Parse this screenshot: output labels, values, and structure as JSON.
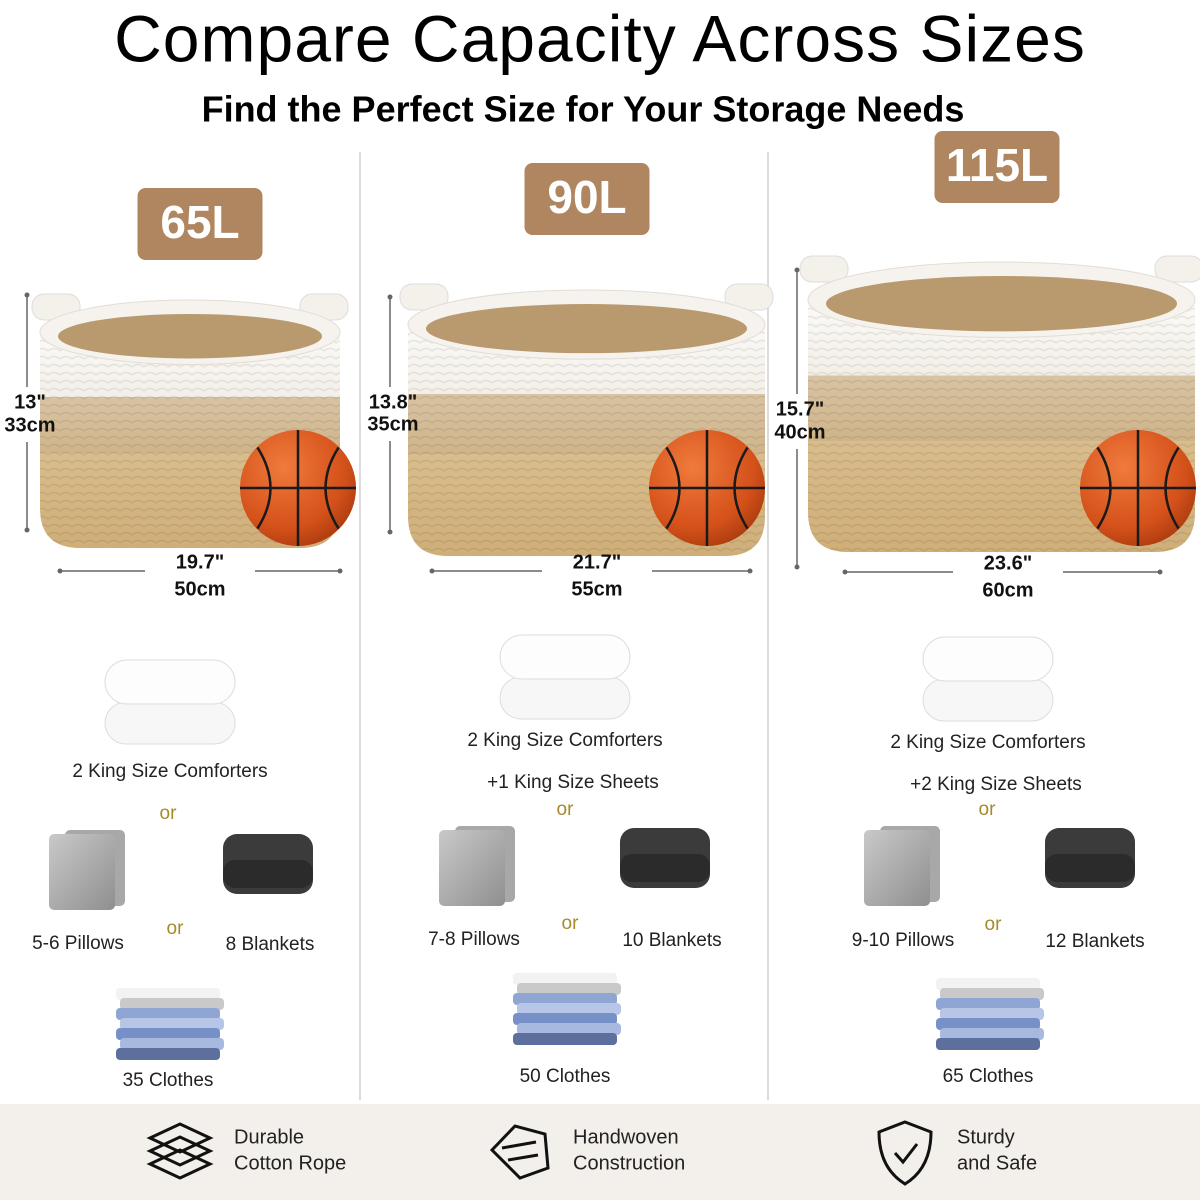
{
  "header": {
    "title": "Compare Capacity Across Sizes",
    "subtitle": "Find the Perfect Size for Your Storage Needs"
  },
  "columns": [
    {
      "capacity": "65L",
      "height_in": "13\"",
      "height_cm": "33cm",
      "width_in": "19.7\"",
      "width_cm": "50cm",
      "comforters": "2 King Size Comforters",
      "or_1": "or",
      "or_2": "or",
      "pillows": "5-6 Pillows",
      "blankets": "8 Blankets",
      "clothes": "35 Clothes"
    },
    {
      "capacity": "90L",
      "height_in": "13.8\"",
      "height_cm": "35cm",
      "width_in": "21.7\"",
      "width_cm": "55cm",
      "comforters": "2 King Size Comforters",
      "sheets": "+1 King Size Sheets",
      "or_1": "or",
      "or_2": "or",
      "pillows": "7-8 Pillows",
      "blankets": "10 Blankets",
      "clothes": "50 Clothes"
    },
    {
      "capacity": "115L",
      "height_in": "15.7\"",
      "height_cm": "40cm",
      "width_in": "23.6\"",
      "width_cm": "60cm",
      "comforters": "2 King Size Comforters",
      "sheets": "+2 King Size Sheets",
      "or_1": "or",
      "or_2": "or",
      "pillows": "9-10 Pillows",
      "blankets": "12 Blankets",
      "clothes": "65 Clothes"
    }
  ],
  "features": [
    {
      "lines": [
        "Durable",
        "Cotton Rope"
      ]
    },
    {
      "lines": [
        "Handwoven",
        "Construction"
      ]
    },
    {
      "lines": [
        "Sturdy",
        "and Safe"
      ]
    }
  ]
}
